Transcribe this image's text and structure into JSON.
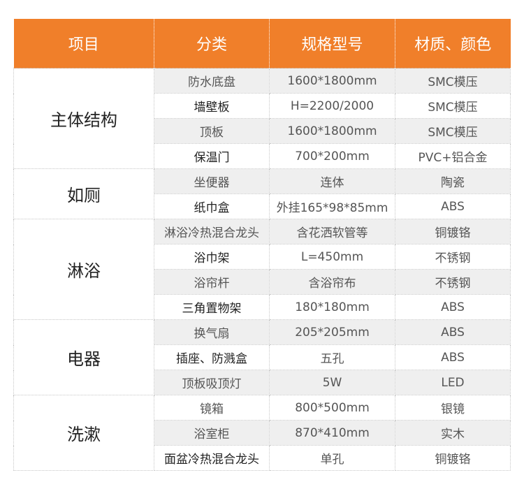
{
  "headers": [
    "项目",
    "分类",
    "规格型号",
    "材质、颜色"
  ],
  "groups": [
    {
      "name": "主体结构",
      "rows": [
        {
          "category": "防水底盘",
          "spec": "1600*1800mm",
          "material": "SMC模压"
        },
        {
          "category": "墙壁板",
          "spec": "H=2200/2000",
          "material": "SMC模压"
        },
        {
          "category": "顶板",
          "spec": "1600*1800mm",
          "material": "SMC模压"
        },
        {
          "category": "保温门",
          "spec": "700*200mm",
          "material": "PVC+铝合金"
        }
      ]
    },
    {
      "name": "如厕",
      "rows": [
        {
          "category": "坐便器",
          "spec": "连体",
          "material": "陶瓷"
        },
        {
          "category": "纸巾盒",
          "spec": "外挂165*98*85mm",
          "material": "ABS"
        }
      ]
    },
    {
      "name": "淋浴",
      "rows": [
        {
          "category": "淋浴冷热混合龙头",
          "spec": "含花洒软管等",
          "material": "铜镀铬"
        },
        {
          "category": "浴巾架",
          "spec": "L=450mm",
          "material": "不锈钢"
        },
        {
          "category": "浴帘杆",
          "spec": "含浴帘布",
          "material": "不锈钢"
        },
        {
          "category": "三角置物架",
          "spec": "180*180mm",
          "material": "ABS"
        }
      ]
    },
    {
      "name": "电器",
      "rows": [
        {
          "category": "换气扇",
          "spec": "205*205mm",
          "material": "ABS"
        },
        {
          "category": "插座、防溅盒",
          "spec": "五孔",
          "material": "ABS"
        },
        {
          "category": "顶板吸顶灯",
          "spec": "5W",
          "material": "LED"
        }
      ]
    },
    {
      "name": "洗漱",
      "rows": [
        {
          "category": "镜箱",
          "spec": "800*500mm",
          "material": "银镜"
        },
        {
          "category": "浴室柜",
          "spec": "870*410mm",
          "material": "实木"
        },
        {
          "category": "面盆冷热混合龙头",
          "spec": "单孔",
          "material": "铜镀铬"
        }
      ]
    }
  ],
  "colors": {
    "header_bg": "#f07f2a",
    "row_shade": "#efefef"
  }
}
